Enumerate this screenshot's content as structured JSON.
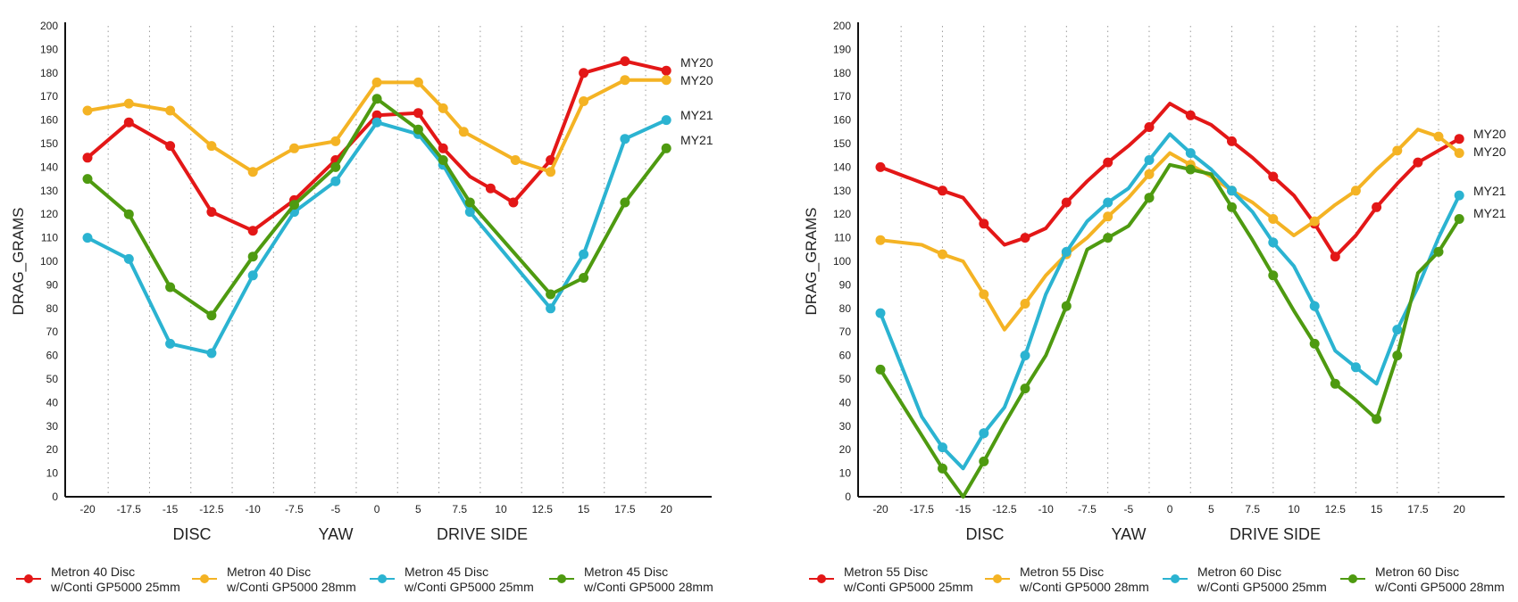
{
  "colors": {
    "red": "#e31717",
    "yellow": "#f4b324",
    "blue": "#2bb3d1",
    "green": "#4e9a10"
  },
  "chart_data": [
    {
      "type": "line",
      "ylabel": "DRAG_GRAMS",
      "ylim": [
        0,
        200
      ],
      "yticks": [
        "0",
        "10",
        "20",
        "30",
        "40",
        "50",
        "60",
        "70",
        "80",
        "90",
        "100",
        "110",
        "120",
        "130",
        "140",
        "150",
        "160",
        "170",
        "180",
        "190",
        "200"
      ],
      "xticks": [
        "-20",
        "-17.5",
        "-15",
        "-12.5",
        "-10",
        "-7.5",
        "-5",
        "0",
        "5",
        "7.5",
        "10",
        "12.5",
        "15",
        "17.5",
        "20"
      ],
      "sections": [
        "DISC",
        "YAW",
        "DRIVE SIDE"
      ],
      "end_labels": [
        "MY20",
        "MY20",
        "MY21",
        "MY21"
      ],
      "series": [
        {
          "name": "Metron 40 Disc",
          "name2": "w/Conti GP5000 25mm",
          "color": "#e31717",
          "points": [
            [
              0,
              144
            ],
            [
              1,
              159
            ],
            [
              2,
              149
            ],
            [
              3,
              121
            ],
            [
              4,
              113
            ],
            [
              5,
              126
            ],
            [
              6,
              143
            ],
            [
              7,
              162
            ],
            [
              8,
              163
            ],
            [
              8.6,
              148
            ],
            [
              9.25,
              136
            ],
            [
              9.75,
              131
            ],
            [
              10.3,
              125
            ],
            [
              11.2,
              143
            ],
            [
              12,
              180
            ],
            [
              13,
              185
            ],
            [
              14,
              181
            ]
          ],
          "markers": [
            0,
            1,
            2,
            3,
            4,
            5,
            6,
            7,
            8,
            9,
            11,
            12,
            13,
            14,
            15,
            16
          ]
        },
        {
          "name": "Metron 40 Disc",
          "name2": "w/Conti GP5000 28mm",
          "color": "#f4b324",
          "points": [
            [
              0,
              164
            ],
            [
              1,
              167
            ],
            [
              2,
              164
            ],
            [
              3,
              149
            ],
            [
              4,
              138
            ],
            [
              5,
              148
            ],
            [
              6,
              151
            ],
            [
              7,
              176
            ],
            [
              8,
              176
            ],
            [
              8.6,
              165
            ],
            [
              9.1,
              155
            ],
            [
              10.35,
              143
            ],
            [
              11.2,
              138
            ],
            [
              12,
              168
            ],
            [
              13,
              177
            ],
            [
              14,
              177
            ]
          ],
          "markers": [
            0,
            1,
            2,
            3,
            4,
            5,
            6,
            7,
            8,
            9,
            10,
            11,
            12,
            13,
            14,
            15
          ]
        },
        {
          "name": "Metron 45 Disc",
          "name2": "w/Conti GP5000 25mm",
          "color": "#2bb3d1",
          "points": [
            [
              0,
              110
            ],
            [
              1,
              101
            ],
            [
              2,
              65
            ],
            [
              3,
              61
            ],
            [
              4,
              94
            ],
            [
              5,
              121
            ],
            [
              6,
              134
            ],
            [
              7,
              159
            ],
            [
              8,
              154
            ],
            [
              8.6,
              141
            ],
            [
              9.25,
              121
            ],
            [
              11.2,
              80
            ],
            [
              12,
              103
            ],
            [
              13,
              152
            ],
            [
              14,
              160
            ]
          ],
          "markers": [
            0,
            1,
            2,
            3,
            4,
            5,
            6,
            7,
            8,
            9,
            10,
            11,
            12,
            13,
            14
          ]
        },
        {
          "name": "Metron 45 Disc",
          "name2": "w/Conti GP5000 28mm",
          "color": "#4e9a10",
          "points": [
            [
              0,
              135
            ],
            [
              1,
              120
            ],
            [
              2,
              89
            ],
            [
              3,
              77
            ],
            [
              4,
              102
            ],
            [
              5,
              124
            ],
            [
              6,
              140
            ],
            [
              7,
              169
            ],
            [
              8,
              156
            ],
            [
              8.6,
              143
            ],
            [
              9.25,
              125
            ],
            [
              11.2,
              86
            ],
            [
              12,
              93
            ],
            [
              13,
              125
            ],
            [
              14,
              148
            ]
          ],
          "markers": [
            0,
            1,
            2,
            3,
            4,
            5,
            6,
            7,
            8,
            9,
            10,
            11,
            12,
            13,
            14
          ]
        }
      ]
    },
    {
      "type": "line",
      "ylabel": "DRAG_GRAMS",
      "ylim": [
        0,
        200
      ],
      "yticks": [
        "0",
        "10",
        "20",
        "30",
        "40",
        "50",
        "60",
        "70",
        "80",
        "90",
        "100",
        "110",
        "120",
        "130",
        "140",
        "150",
        "160",
        "170",
        "180",
        "190",
        "200"
      ],
      "xticks": [
        "-20",
        "-17.5",
        "-15",
        "-12.5",
        "-10",
        "-7.5",
        "-5",
        "0",
        "5",
        "7.5",
        "10",
        "12.5",
        "15",
        "17.5",
        "20"
      ],
      "sections": [
        "DISC",
        "YAW",
        "DRIVE SIDE"
      ],
      "end_labels": [
        "MY20",
        "MY20",
        "MY21",
        "MY21"
      ],
      "series": [
        {
          "name": "Metron 55 Disc",
          "name2": "w/Conti GP5000 25mm",
          "color": "#e31717",
          "points": [
            [
              0,
              140
            ],
            [
              1.5,
              130
            ],
            [
              2,
              127
            ],
            [
              2.5,
              116
            ],
            [
              3,
              107
            ],
            [
              3.5,
              110
            ],
            [
              4,
              114
            ],
            [
              4.5,
              125
            ],
            [
              5,
              134
            ],
            [
              5.5,
              142
            ],
            [
              6,
              149
            ],
            [
              6.5,
              157
            ],
            [
              7,
              167
            ],
            [
              7.5,
              162
            ],
            [
              8,
              158
            ],
            [
              8.5,
              151
            ],
            [
              9,
              144
            ],
            [
              9.5,
              136
            ],
            [
              10,
              128
            ],
            [
              10.5,
              116
            ],
            [
              11,
              102
            ],
            [
              11.5,
              111
            ],
            [
              12,
              123
            ],
            [
              12.5,
              133
            ],
            [
              13,
              142
            ],
            [
              13.5,
              147
            ],
            [
              14,
              152
            ]
          ],
          "markers": [
            0,
            1,
            3,
            5,
            7,
            9,
            11,
            13,
            15,
            17,
            19,
            20,
            22,
            24,
            26
          ]
        },
        {
          "name": "Metron 55 Disc",
          "name2": "w/Conti GP5000 28mm",
          "color": "#f4b324",
          "points": [
            [
              0,
              109
            ],
            [
              1,
              107
            ],
            [
              1.5,
              103
            ],
            [
              2,
              100
            ],
            [
              2.5,
              86
            ],
            [
              3,
              71
            ],
            [
              3.5,
              82
            ],
            [
              4,
              94
            ],
            [
              4.5,
              103
            ],
            [
              5,
              110
            ],
            [
              5.5,
              119
            ],
            [
              6,
              127
            ],
            [
              6.5,
              137
            ],
            [
              7,
              146
            ],
            [
              7.5,
              141
            ],
            [
              8,
              136
            ],
            [
              8.5,
              130
            ],
            [
              9,
              125
            ],
            [
              9.5,
              118
            ],
            [
              10,
              111
            ],
            [
              10.5,
              117
            ],
            [
              11,
              124
            ],
            [
              11.5,
              130
            ],
            [
              12,
              139
            ],
            [
              12.5,
              147
            ],
            [
              13,
              156
            ],
            [
              13.5,
              153
            ],
            [
              14,
              146
            ]
          ],
          "markers": [
            0,
            2,
            4,
            6,
            8,
            10,
            12,
            14,
            16,
            18,
            20,
            22,
            24,
            26,
            27
          ]
        },
        {
          "name": "Metron 60 Disc",
          "name2": "w/Conti GP5000 25mm",
          "color": "#2bb3d1",
          "points": [
            [
              0,
              78
            ],
            [
              1,
              34
            ],
            [
              1.5,
              21
            ],
            [
              2,
              12
            ],
            [
              2.5,
              27
            ],
            [
              3,
              38
            ],
            [
              3.5,
              60
            ],
            [
              4,
              86
            ],
            [
              4.5,
              104
            ],
            [
              5,
              117
            ],
            [
              5.5,
              125
            ],
            [
              6,
              131
            ],
            [
              6.5,
              143
            ],
            [
              7,
              154
            ],
            [
              7.5,
              146
            ],
            [
              8,
              139
            ],
            [
              8.5,
              130
            ],
            [
              9,
              121
            ],
            [
              9.5,
              108
            ],
            [
              10,
              98
            ],
            [
              10.5,
              81
            ],
            [
              11,
              62
            ],
            [
              11.5,
              55
            ],
            [
              12,
              48
            ],
            [
              12.5,
              71
            ],
            [
              13,
              89
            ],
            [
              13.5,
              110
            ],
            [
              14,
              128
            ]
          ],
          "markers": [
            0,
            2,
            4,
            6,
            8,
            10,
            12,
            14,
            16,
            18,
            20,
            22,
            24,
            27
          ]
        },
        {
          "name": "Metron 60 Disc",
          "name2": "w/Conti GP5000 28mm",
          "color": "#4e9a10",
          "points": [
            [
              0,
              54
            ],
            [
              1.5,
              12
            ],
            [
              2,
              0
            ],
            [
              2.5,
              15
            ],
            [
              3,
              31
            ],
            [
              3.5,
              46
            ],
            [
              4,
              60
            ],
            [
              4.5,
              81
            ],
            [
              5,
              105
            ],
            [
              5.5,
              110
            ],
            [
              6,
              115
            ],
            [
              6.5,
              127
            ],
            [
              7,
              141
            ],
            [
              7.5,
              139
            ],
            [
              8,
              137
            ],
            [
              8.5,
              123
            ],
            [
              9,
              109
            ],
            [
              9.5,
              94
            ],
            [
              10,
              79
            ],
            [
              10.5,
              65
            ],
            [
              11,
              48
            ],
            [
              11.5,
              41
            ],
            [
              12,
              33
            ],
            [
              12.5,
              60
            ],
            [
              13,
              95
            ],
            [
              13.5,
              104
            ],
            [
              14,
              118
            ]
          ],
          "markers": [
            0,
            1,
            3,
            5,
            7,
            9,
            11,
            13,
            15,
            17,
            19,
            20,
            22,
            23,
            25,
            26
          ]
        }
      ]
    }
  ]
}
